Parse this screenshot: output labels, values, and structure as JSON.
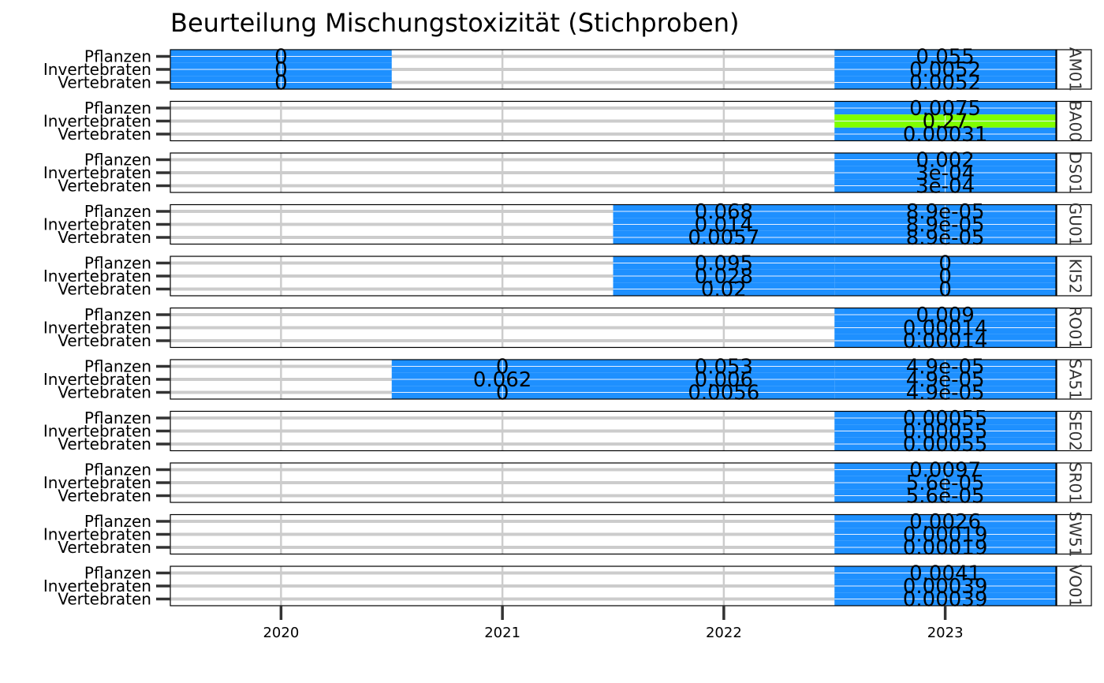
{
  "chart_data": {
    "type": "heatmap",
    "title": "Beurteilung Mischungstoxizität (Stichproben)",
    "xlabel": "",
    "ylabel": "",
    "x_ticks": [
      "2020",
      "2021",
      "2022",
      "2023"
    ],
    "y_categories": [
      "Pflanzen",
      "Invertebraten",
      "Vertebraten"
    ],
    "grid": true,
    "colors": {
      "good": "#1E90FF",
      "moderate": "#7FFF00",
      "empty_grid": "#cccccc"
    },
    "panels": [
      {
        "strip": "AM01",
        "cells": [
          {
            "year": "2020",
            "values": [
              "0",
              "0",
              "0"
            ],
            "fill": [
              "good",
              "good",
              "good"
            ]
          },
          {
            "year": "2023",
            "values": [
              "0.055",
              "0.0052",
              "0.0052"
            ],
            "fill": [
              "good",
              "good",
              "good"
            ]
          }
        ]
      },
      {
        "strip": "BA00",
        "cells": [
          {
            "year": "2023",
            "values": [
              "0.0075",
              "0.27",
              "0.00031"
            ],
            "fill": [
              "good",
              "moderate",
              "good"
            ]
          }
        ]
      },
      {
        "strip": "DS01",
        "cells": [
          {
            "year": "2023",
            "values": [
              "0.002",
              "3e-04",
              "3e-04"
            ],
            "fill": [
              "good",
              "good",
              "good"
            ]
          }
        ]
      },
      {
        "strip": "GU01",
        "cells": [
          {
            "year": "2022",
            "values": [
              "0.068",
              "0.014",
              "0.0057"
            ],
            "fill": [
              "good",
              "good",
              "good"
            ]
          },
          {
            "year": "2023",
            "values": [
              "8.9e-05",
              "8.9e-05",
              "8.9e-05"
            ],
            "fill": [
              "good",
              "good",
              "good"
            ]
          }
        ]
      },
      {
        "strip": "KI52",
        "cells": [
          {
            "year": "2022",
            "values": [
              "0.095",
              "0.028",
              "0.02"
            ],
            "fill": [
              "good",
              "good",
              "good"
            ]
          },
          {
            "year": "2023",
            "values": [
              "0",
              "0",
              "0"
            ],
            "fill": [
              "good",
              "good",
              "good"
            ]
          }
        ]
      },
      {
        "strip": "RO01",
        "cells": [
          {
            "year": "2023",
            "values": [
              "0.009",
              "0.00014",
              "0.00014"
            ],
            "fill": [
              "good",
              "good",
              "good"
            ]
          }
        ]
      },
      {
        "strip": "SA51",
        "cells": [
          {
            "year": "2021",
            "values": [
              "0",
              "0.062",
              "0"
            ],
            "fill": [
              "good",
              "good",
              "good"
            ]
          },
          {
            "year": "2022",
            "values": [
              "0.053",
              "0.006",
              "0.0056"
            ],
            "fill": [
              "good",
              "good",
              "good"
            ]
          },
          {
            "year": "2023",
            "values": [
              "4.9e-05",
              "4.9e-05",
              "4.9e-05"
            ],
            "fill": [
              "good",
              "good",
              "good"
            ]
          }
        ]
      },
      {
        "strip": "SE02",
        "cells": [
          {
            "year": "2023",
            "values": [
              "0.00055",
              "0.00055",
              "0.00055"
            ],
            "fill": [
              "good",
              "good",
              "good"
            ]
          }
        ]
      },
      {
        "strip": "SR01",
        "cells": [
          {
            "year": "2023",
            "values": [
              "0.0097",
              "5.6e-05",
              "5.6e-05"
            ],
            "fill": [
              "good",
              "good",
              "good"
            ]
          }
        ]
      },
      {
        "strip": "SW51",
        "cells": [
          {
            "year": "2023",
            "values": [
              "0.0026",
              "0.00019",
              "0.00019"
            ],
            "fill": [
              "good",
              "good",
              "good"
            ]
          }
        ]
      },
      {
        "strip": "VO01",
        "cells": [
          {
            "year": "2023",
            "values": [
              "0.0041",
              "0.00039",
              "0.00039"
            ],
            "fill": [
              "good",
              "good",
              "good"
            ]
          }
        ]
      }
    ]
  }
}
